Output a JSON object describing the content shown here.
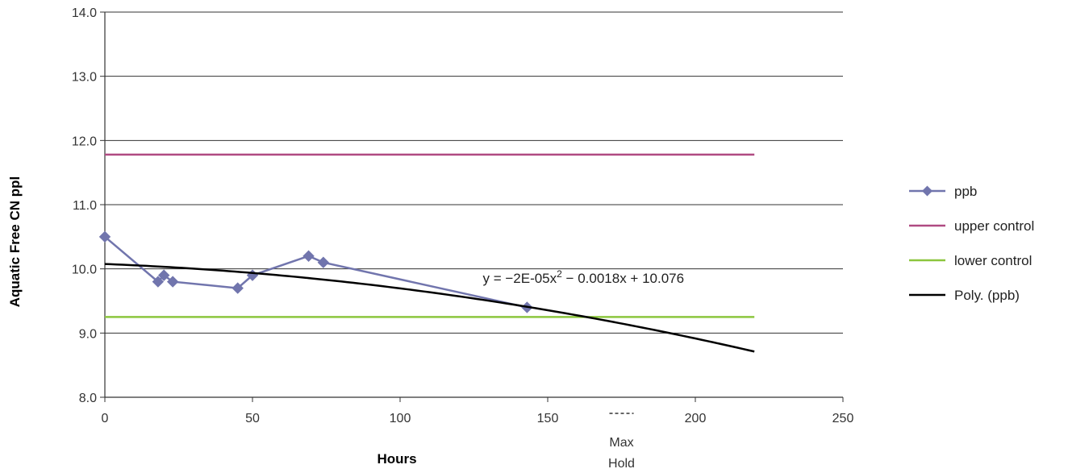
{
  "chart_data": {
    "type": "line",
    "xlabel": "Hours",
    "ylabel": "Aquatic Free CN ppl",
    "xlim": [
      0,
      250
    ],
    "ylim": [
      8.0,
      14.0
    ],
    "x_ticks": [
      "0",
      "50",
      "100",
      "150",
      "200",
      "250"
    ],
    "y_ticks": [
      "8.0",
      "9.0",
      "10.0",
      "11.0",
      "12.0",
      "13.0",
      "14.0"
    ],
    "grid": "horizontal",
    "legend_position": "right",
    "series": [
      {
        "name": "ppb",
        "color": "#7175ad",
        "marker": "diamond",
        "x": [
          0,
          18,
          20,
          23,
          45,
          50,
          69,
          74,
          143
        ],
        "y": [
          10.5,
          9.8,
          9.9,
          9.8,
          9.7,
          9.9,
          10.2,
          10.1,
          9.4
        ]
      },
      {
        "name": "upper control",
        "color": "#b04a82",
        "x": [
          0,
          220
        ],
        "y": [
          11.78,
          11.78
        ]
      },
      {
        "name": "lower control",
        "color": "#8cc63e",
        "x": [
          0,
          220
        ],
        "y": [
          9.25,
          9.25
        ]
      },
      {
        "name": "Poly. (ppb)",
        "color": "#000000",
        "trend": "poly2",
        "coefficients": [
          -2e-05,
          -0.0018,
          10.076
        ],
        "x_range": [
          0,
          220
        ]
      }
    ],
    "annotations": {
      "equation": {
        "prefix": "y = −2E-05x",
        "superscript": "2",
        "suffix": " − 0.0018x + 10.076",
        "x": 128,
        "y": 9.78
      },
      "max_hold": {
        "label_line1": "Max",
        "label_line2": "Hold",
        "x": 175
      }
    }
  }
}
